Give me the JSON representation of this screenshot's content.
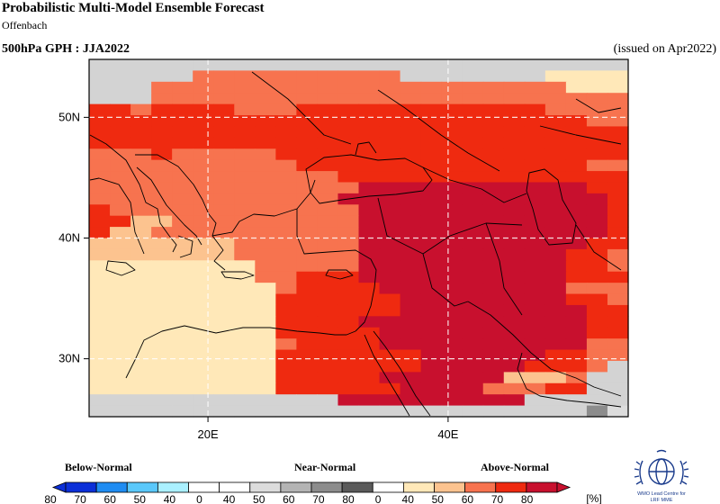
{
  "header": {
    "title": "Probabilistic Multi-Model Ensemble Forecast",
    "subtitle": "Offenbach",
    "field": "500hPa GPH : JJA2022",
    "issued": "(issued on Apr2022)"
  },
  "map": {
    "lat_labels": [
      "50N",
      "40N",
      "30N"
    ],
    "lon_labels": [
      "20E",
      "40E"
    ],
    "grid_style": "dashed white",
    "region": "Mediterranean / Middle East",
    "levels": [
      "empty",
      "below_ge_70",
      "below_50_70",
      "below_40_50",
      "near_40_50",
      "near_50_70",
      "near_70_80",
      "above_40_50",
      "above_50_60",
      "above_60_70",
      "above_70_80",
      "above_ge_80"
    ],
    "cell_rows": [
      "..........................",
      ".....9999999999.......7777",
      "...99999999999999999999777",
      "...99999999999999999999999",
      "AA9AAAA999AAAAAAAAAAAA9999",
      "AAAAAAAAAAAAAAAAAAAAAAAA99",
      "AAAAAAAAAAAAAAAAAAAAAAAAAA",
      "AAAAAAAAAAAAAAAAAAAAAAAAAA",
      "999A99999AAAAAAAAAAAAAAAAA",
      "9999999999AAAAAAAAAAAAAA99",
      "999999999999AAAAAAAAAAAAAA",
      "9999999999999BBBBBBBBBBBAA",
      "999999999999BBBBBBBBBBBBBA",
      "A999999999999BBBBBBBBBBBBA",
      "AA88999999999BBBBBBBBBBBBA",
      "A889999999999BBBBBBBBBBBBA",
      "8888888999999BBBBBBBBBBBAA",
      "8888888999999BBBBBBBBBBAA9",
      "7777777799999BBBBBBBBBBAA9",
      "7777777799AAABBBBBBBBBBAAA",
      "7777777779AAAABBBBBBBBB999",
      "777777777AAAAAABBBBBBBBAA9",
      "777777777AAAAAABBBBBBBBBAA",
      "777777777AAAABBBBBBBBBBBAA",
      "777777777AAAAABBBBBBBBBBAA",
      "7777777779AAAABBBBBBBBBB99",
      "777777777AAAAAAABBBBBBAA99",
      "777777777AAAAAAABBBBBAAA9.",
      "777777777AAAAABBBBBB8889..",
      "777777777AAAAAABBBB999AA..",
      "............BBBBBBBBB.....",
      "........................64"
    ]
  },
  "legend": {
    "group_below": "Below-Normal",
    "group_near": "Near-Normal",
    "group_above": "Above-Normal",
    "ticks": [
      "80",
      "70",
      "60",
      "50",
      "40",
      "0",
      "40",
      "50",
      "60",
      "70",
      "80",
      "0",
      "40",
      "50",
      "60",
      "70",
      "80"
    ],
    "unit": "[%]",
    "colors": [
      "#0b2fd8",
      "#1f8cf2",
      "#5ac8fa",
      "#aaf0ff",
      "#ffffff",
      "#ffffff",
      "#dcdcdc",
      "#b4b4b4",
      "#8c8c8c",
      "#5a5a5a",
      "#ffffff",
      "#ffe8b8",
      "#fcc38f",
      "#f7734f",
      "#ef2a10",
      "#c8102e"
    ]
  },
  "logo": {
    "caption_line1": "WMO Lead Centre for",
    "caption_line2": "LRF MME"
  },
  "colors": {
    "empty": "#d3d3d3",
    "below_ge_70": "#1f8cf2",
    "below_50_70": "#5ac8fa",
    "below_40_50": "#aaf0ff",
    "near_40_50": "#dcdcdc",
    "near_50_70": "#b4b4b4",
    "near_70_80": "#8c8c8c",
    "above_40_50": "#ffe8b8",
    "above_50_60": "#fcc38f",
    "above_60_70": "#f7734f",
    "above_70_80": "#ef2a10",
    "above_ge_80": "#c8102e",
    "grid": "#ffffff",
    "coast": "#000000",
    "logo": "#1a3b8c"
  }
}
